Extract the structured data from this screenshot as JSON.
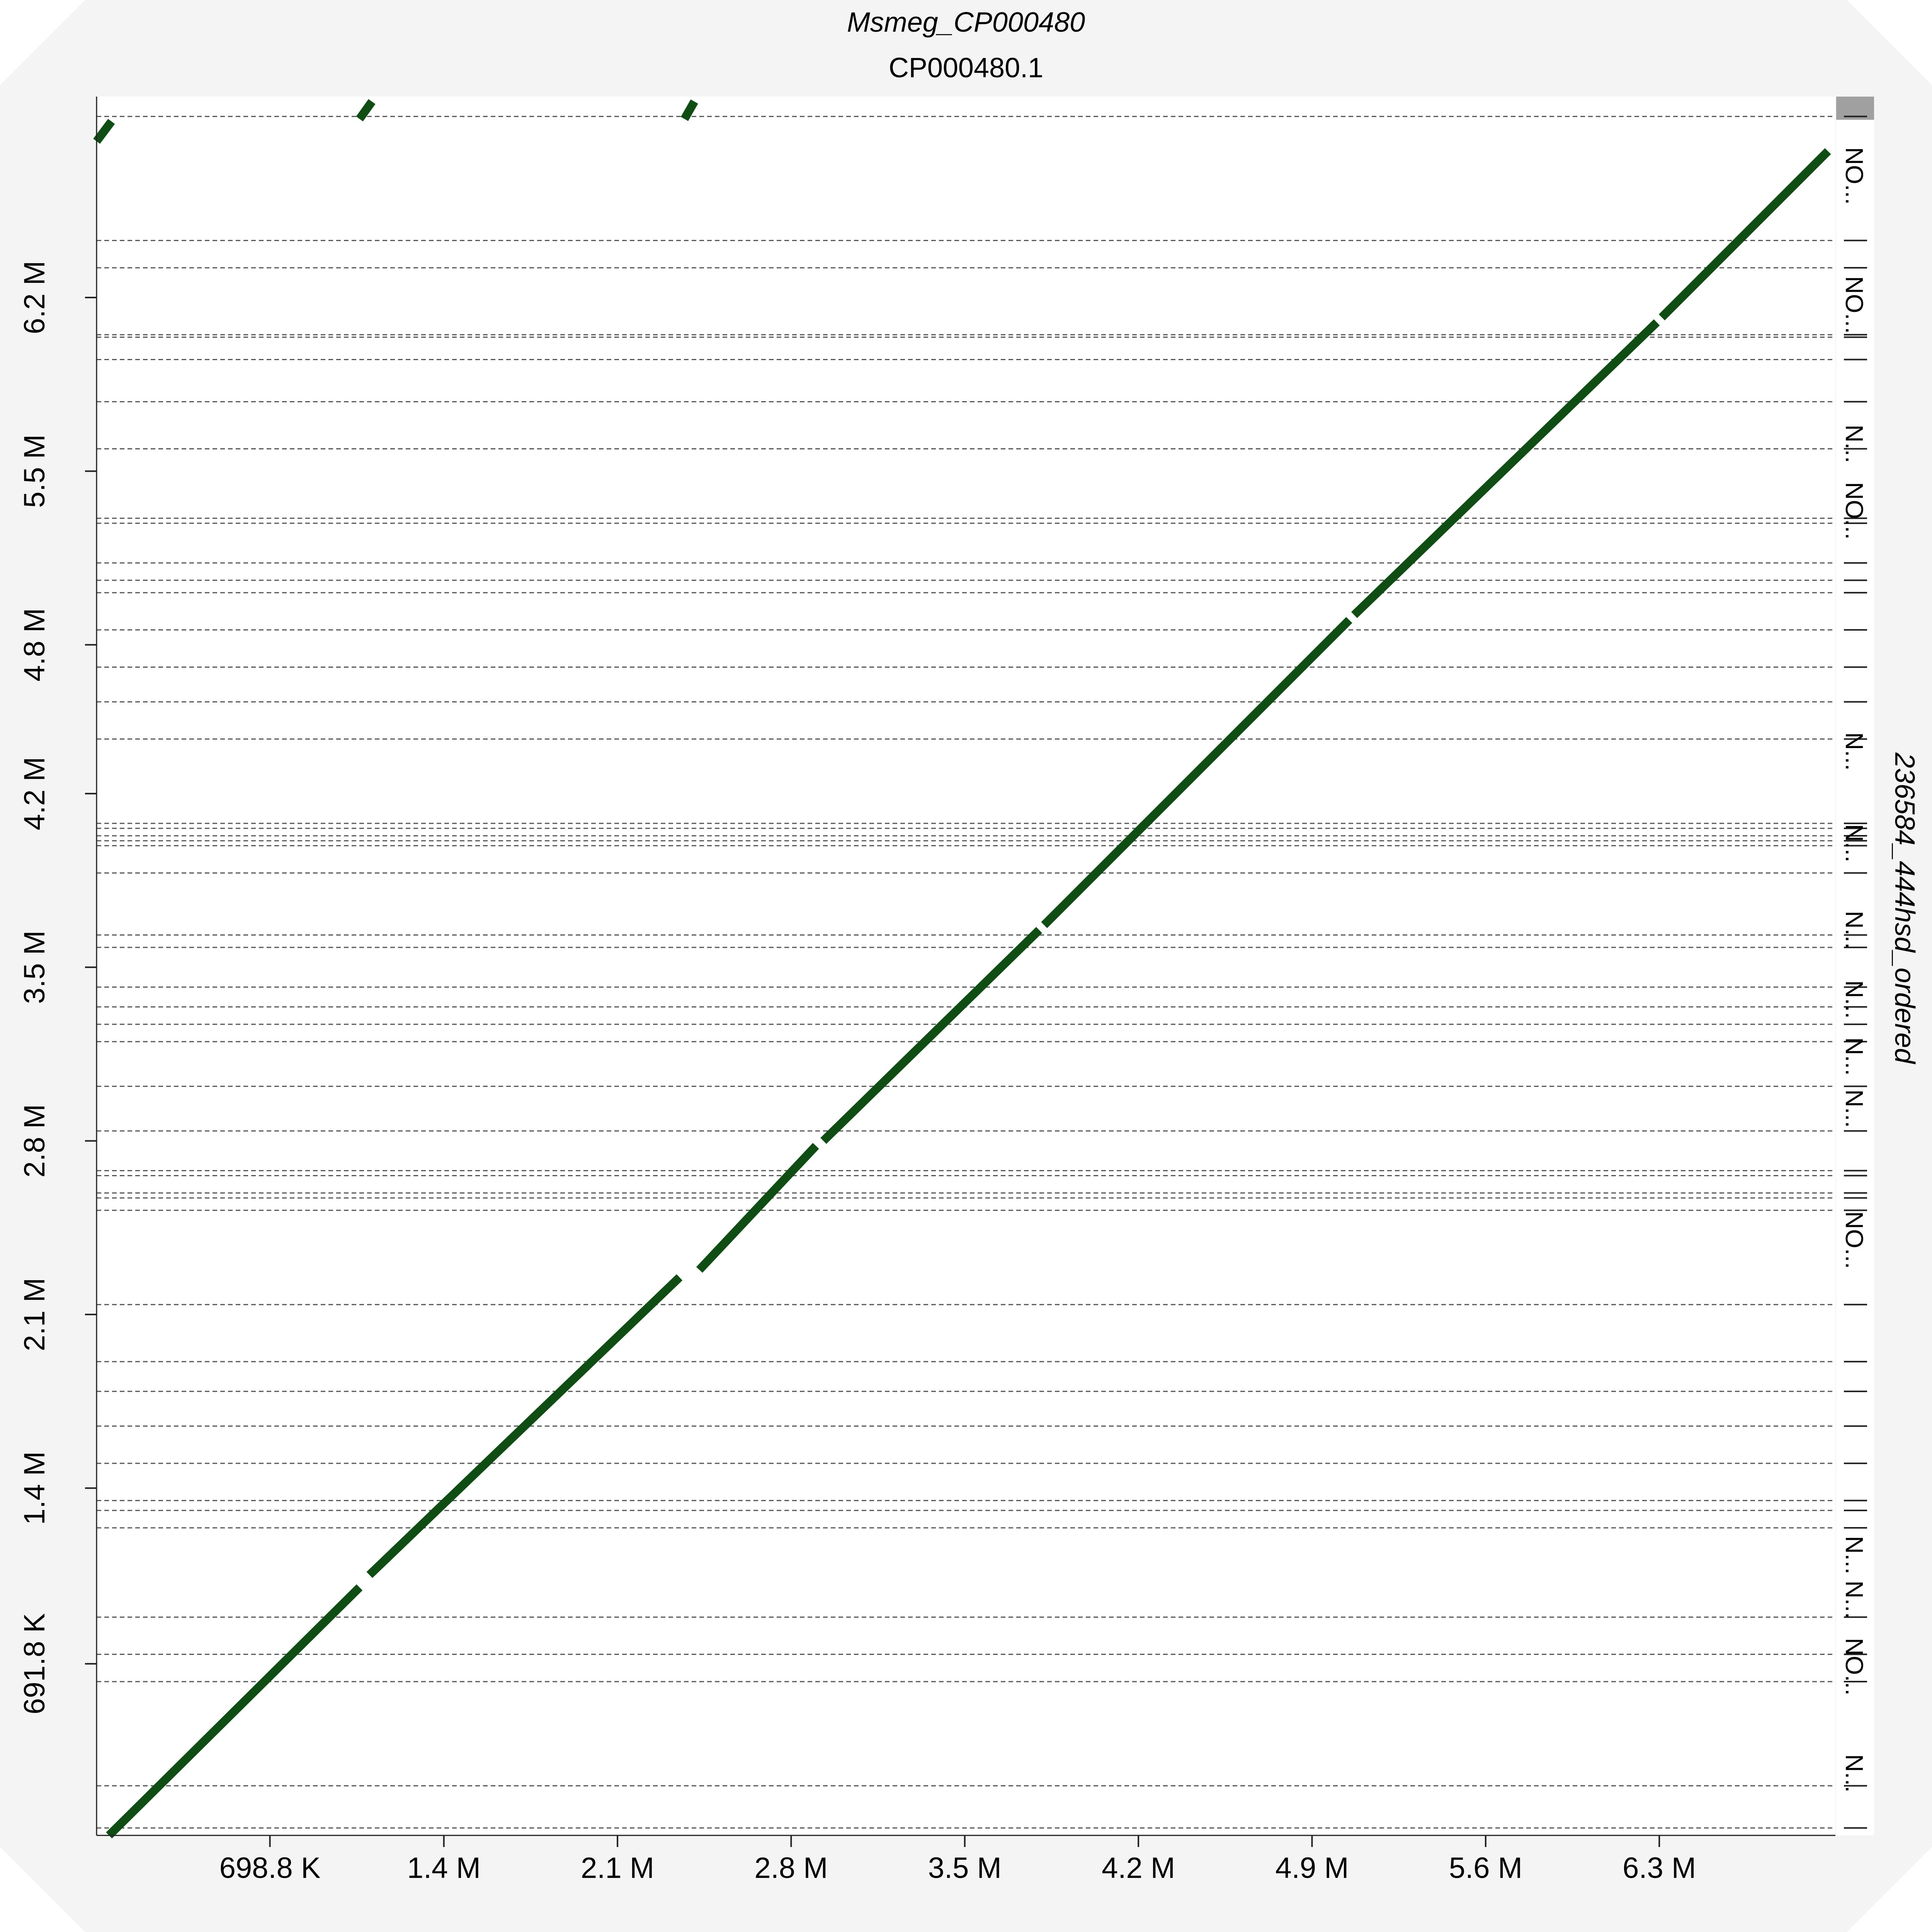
{
  "colors": {
    "background": "#f4f4f4",
    "plot_bg": "#ffffff",
    "line": "#0f4d14",
    "grid": "#555555",
    "strip": "#ffffff",
    "strip_cap": "#a0a0a0"
  },
  "chart_data": {
    "type": "scatter",
    "title": "Msmeg_CP000480",
    "subtitle": "CP000480.1",
    "xlabel": "",
    "ylabel": "",
    "right_label": "236584_444hsd_ordered",
    "xlim": [
      0,
      7010000
    ],
    "ylim": [
      0,
      7010000
    ],
    "x_ticks": [
      {
        "value": 698800,
        "label": "698.8 K"
      },
      {
        "value": 1400000,
        "label": "1.4 M"
      },
      {
        "value": 2100000,
        "label": "2.1 M"
      },
      {
        "value": 2800000,
        "label": "2.8 M"
      },
      {
        "value": 3500000,
        "label": "3.5 M"
      },
      {
        "value": 4200000,
        "label": "4.2 M"
      },
      {
        "value": 4900000,
        "label": "4.9 M"
      },
      {
        "value": 5600000,
        "label": "5.6 M"
      },
      {
        "value": 6300000,
        "label": "6.3 M"
      }
    ],
    "y_ticks": [
      {
        "value": 691800,
        "label": "691.8 K"
      },
      {
        "value": 1400000,
        "label": "1.4 M"
      },
      {
        "value": 2100000,
        "label": "2.1 M"
      },
      {
        "value": 2800000,
        "label": "2.8 M"
      },
      {
        "value": 3500000,
        "label": "3.5 M"
      },
      {
        "value": 4200000,
        "label": "4.2 M"
      },
      {
        "value": 4800000,
        "label": "4.8 M"
      },
      {
        "value": 5500000,
        "label": "5.5 M"
      },
      {
        "value": 6200000,
        "label": "6.2 M"
      }
    ],
    "contig_boundaries": [
      30000,
      200000,
      620000,
      730000,
      880000,
      1240000,
      1310000,
      1350000,
      1500000,
      1650000,
      1790000,
      1910000,
      2140000,
      2520000,
      2570000,
      2590000,
      2660000,
      2680000,
      2840000,
      3020000,
      3200000,
      3270000,
      3340000,
      3420000,
      3580000,
      3630000,
      3880000,
      3990000,
      4010000,
      4030000,
      4060000,
      4080000,
      4420000,
      4570000,
      4710000,
      4860000,
      5010000,
      5060000,
      5130000,
      5290000,
      5310000,
      5590000,
      5780000,
      5950000,
      6040000,
      6050000,
      6320000,
      6430000,
      6930000
    ],
    "strip_labels": [
      {
        "y": 6690000,
        "label": "NO..."
      },
      {
        "y": 6170000,
        "label": "NO..."
      },
      {
        "y": 5610000,
        "label": "N..."
      },
      {
        "y": 5340000,
        "label": "NO..."
      },
      {
        "y": 4370000,
        "label": "N..."
      },
      {
        "y": 4000000,
        "label": "N..."
      },
      {
        "y": 3650000,
        "label": "N..."
      },
      {
        "y": 3370000,
        "label": "N..."
      },
      {
        "y": 3140000,
        "label": "N..."
      },
      {
        "y": 2930000,
        "label": "N..."
      },
      {
        "y": 2400000,
        "label": "NO..."
      },
      {
        "y": 1130000,
        "label": "N..."
      },
      {
        "y": 950000,
        "label": "N..."
      },
      {
        "y": 680000,
        "label": "NO..."
      },
      {
        "y": 250000,
        "label": "N..."
      }
    ],
    "series": [
      {
        "segments": [
          {
            "x": [
              50000,
              1060000
            ],
            "y": [
              0,
              1000000
            ]
          },
          {
            "x": [
              1100000,
              2350000
            ],
            "y": [
              1050000,
              2250000
            ]
          },
          {
            "x": [
              2430000,
              2900000
            ],
            "y": [
              2280000,
              2780000
            ]
          },
          {
            "x": [
              2930000,
              3800000
            ],
            "y": [
              2800000,
              3650000
            ]
          },
          {
            "x": [
              3820000,
              5050000
            ],
            "y": [
              3670000,
              4900000
            ]
          },
          {
            "x": [
              5070000,
              6290000
            ],
            "y": [
              4920000,
              6100000
            ]
          },
          {
            "x": [
              6310000,
              6980000
            ],
            "y": [
              6120000,
              6790000
            ]
          },
          {
            "x": [
              0,
              60000
            ],
            "y": [
              6830000,
              6910000
            ]
          },
          {
            "x": [
              1060000,
              1110000
            ],
            "y": [
              6920000,
              6990000
            ]
          },
          {
            "x": [
              2370000,
              2410000
            ],
            "y": [
              6920000,
              6990000
            ]
          }
        ]
      }
    ]
  }
}
